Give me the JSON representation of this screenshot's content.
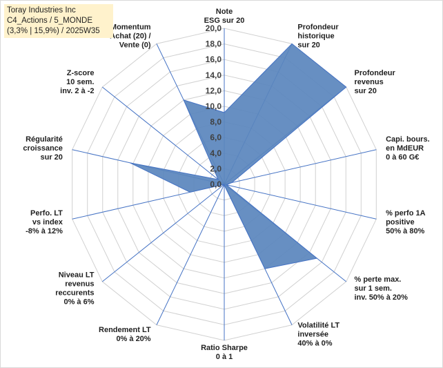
{
  "title_box": {
    "line1": "Toray Industries Inc",
    "line2": "C4_Actions / 5_MONDE",
    "line3": "(3,3% | 15,9%) / 2025W35"
  },
  "colors": {
    "fill": "#5a86bd",
    "stroke": "#4472c4",
    "grid": "#d0d0d0",
    "spoke": "#4472c4",
    "title_bg": "#fff2cc"
  },
  "chart_data": {
    "type": "radar",
    "rmin": 0,
    "rmax": 20,
    "tick_step": 2,
    "tick_labels": [
      "0,0",
      "2,0",
      "4,0",
      "6,0",
      "8,0",
      "10,0",
      "12,0",
      "14,0",
      "16,0",
      "18,0",
      "20,0"
    ],
    "axes": [
      {
        "label": [
          "Note",
          "ESG sur 20"
        ],
        "value": 9.2
      },
      {
        "label": [
          "Profondeur",
          "historique",
          "sur 20"
        ],
        "value": 20.0
      },
      {
        "label": [
          "Profondeur",
          "revenus",
          "sur 20"
        ],
        "value": 20.0
      },
      {
        "label": [
          "Capi. bours.",
          "en MdEUR",
          "0 à 60 G€"
        ],
        "value": 1.0
      },
      {
        "label": [
          "% perfo 1A",
          "positive",
          "50% à 80%"
        ],
        "value": 0.3
      },
      {
        "label": [
          "% perte max.",
          "sur 1 sem.",
          "inv. 50% à 20%"
        ],
        "value": 15.2
      },
      {
        "label": [
          "Volatilité LT",
          "inversée",
          "40% à 0%"
        ],
        "value": 12.0
      },
      {
        "label": [
          "Ratio Sharpe",
          "0 à 1"
        ],
        "value": 0.1
      },
      {
        "label": [
          "Rendement LT",
          "0% à 20%"
        ],
        "value": 0.0
      },
      {
        "label": [
          "Niveau LT",
          "revenus",
          "reccurents",
          "0% à 6%"
        ],
        "value": 0.0
      },
      {
        "label": [
          "Perfo. LT",
          "vs index",
          "-8% à 12%"
        ],
        "value": 4.5
      },
      {
        "label": [
          "Régularité",
          "croissance",
          "sur 20"
        ],
        "value": 12.4
      },
      {
        "label": [
          "Z-score",
          "10 sem.",
          "inv. 2 à -2"
        ],
        "value": 1.0
      },
      {
        "label": [
          "Momentum",
          "Achat (20) /",
          "Vente (0)"
        ],
        "value": 12.0
      }
    ]
  }
}
